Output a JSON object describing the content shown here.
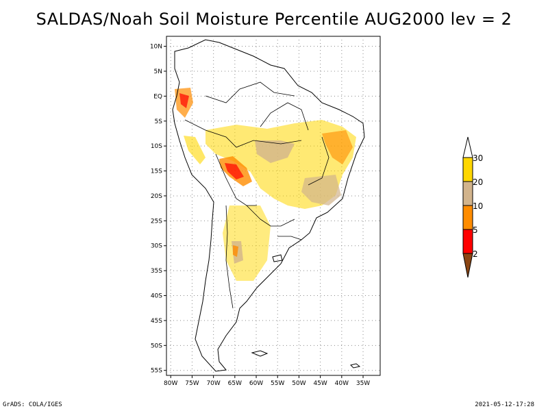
{
  "title": "SALDAS/Noah Soil Moisture Percentile AUG2000 lev = 2",
  "footer": {
    "left": "GrADS: COLA/IGES",
    "right": "2021-05-12-17:28"
  },
  "map": {
    "lon_range": [
      -81,
      -31
    ],
    "lat_range": [
      -56,
      12
    ],
    "lat_labels": [
      "10N",
      "5N",
      "EQ",
      "5S",
      "10S",
      "15S",
      "20S",
      "25S",
      "30S",
      "35S",
      "40S",
      "45S",
      "50S",
      "55S"
    ],
    "lat_values": [
      10,
      5,
      0,
      -5,
      -10,
      -15,
      -20,
      -25,
      -30,
      -35,
      -40,
      -45,
      -50,
      -55
    ],
    "lon_labels": [
      "80W",
      "75W",
      "70W",
      "65W",
      "60W",
      "55W",
      "50W",
      "45W",
      "40W",
      "35W"
    ],
    "lon_values": [
      -80,
      -75,
      -70,
      -65,
      -60,
      -55,
      -50,
      -45,
      -40,
      -35
    ],
    "grid": true
  },
  "legend": {
    "levels": [
      "30",
      "20",
      "10",
      "5",
      "2"
    ],
    "colors": {
      "above30": "#ffffff",
      "20-30": "#ffd700",
      "10-20": "#d2b48c",
      "5-10": "#ff8c00",
      "2-5": "#ff0000",
      "below2": "#8b4513"
    }
  }
}
